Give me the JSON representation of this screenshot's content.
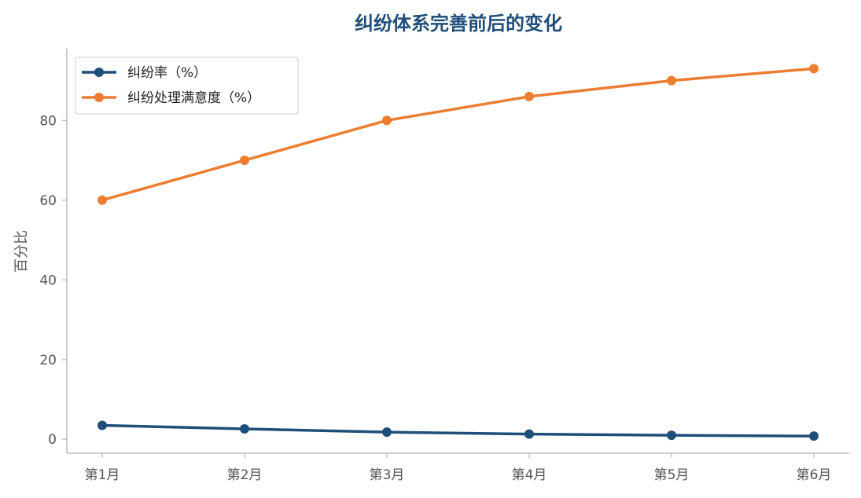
{
  "colors": {
    "series1": "#1f4e79",
    "series2": "#ed7d31",
    "title": "#1f4e79",
    "axis": "#bbbbbb",
    "tick_text": "#555555"
  },
  "chart_data": {
    "type": "line",
    "title": "纠纷体系完善前后的变化",
    "xlabel": "",
    "ylabel": "百分比",
    "categories": [
      "第1月",
      "第2月",
      "第3月",
      "第4月",
      "第5月",
      "第6月"
    ],
    "ylim": [
      -3.5,
      98
    ],
    "yticks": [
      0,
      20,
      40,
      60,
      80
    ],
    "grid": false,
    "legend_position": "upper-left",
    "series": [
      {
        "name": "纠纷率（%）",
        "values": [
          3.5,
          2.6,
          1.8,
          1.3,
          1.0,
          0.8
        ]
      },
      {
        "name": "纠纷处理满意度（%）",
        "values": [
          60,
          70,
          80,
          86,
          90,
          93
        ]
      }
    ]
  }
}
